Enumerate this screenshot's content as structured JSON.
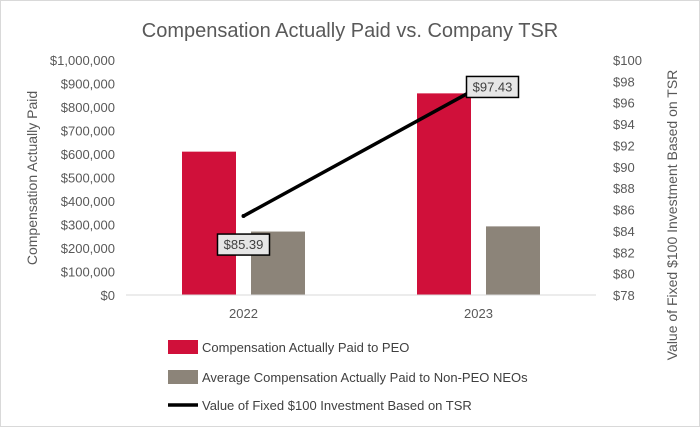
{
  "chart_data": {
    "type": "bar",
    "title": "Compensation Actually Paid vs. Company TSR",
    "xlabel": "",
    "ylabel": "Compensation Actually Paid",
    "y2label": "Value of Fixed $100 Investment Based on TSR",
    "categories": [
      "2022",
      "2023"
    ],
    "ylim": [
      0,
      1000000
    ],
    "y2lim": [
      78,
      100
    ],
    "yticks": [
      {
        "value": 0,
        "label": "$0"
      },
      {
        "value": 100000,
        "label": "$100,000"
      },
      {
        "value": 200000,
        "label": "$200,000"
      },
      {
        "value": 300000,
        "label": "$300,000"
      },
      {
        "value": 400000,
        "label": "$400,000"
      },
      {
        "value": 500000,
        "label": "$500,000"
      },
      {
        "value": 600000,
        "label": "$600,000"
      },
      {
        "value": 700000,
        "label": "$700,000"
      },
      {
        "value": 800000,
        "label": "$800,000"
      },
      {
        "value": 900000,
        "label": "$900,000"
      },
      {
        "value": 1000000,
        "label": "$1,000,000"
      }
    ],
    "y2ticks": [
      {
        "value": 78,
        "label": "$78"
      },
      {
        "value": 80,
        "label": "$80"
      },
      {
        "value": 82,
        "label": "$82"
      },
      {
        "value": 84,
        "label": "$84"
      },
      {
        "value": 86,
        "label": "$86"
      },
      {
        "value": 88,
        "label": "$88"
      },
      {
        "value": 90,
        "label": "$90"
      },
      {
        "value": 92,
        "label": "$92"
      },
      {
        "value": 94,
        "label": "$94"
      },
      {
        "value": 96,
        "label": "$96"
      },
      {
        "value": 98,
        "label": "$98"
      },
      {
        "value": 100,
        "label": "$100"
      }
    ],
    "series": [
      {
        "name": "Compensation Actually Paid to PEO",
        "kind": "bar",
        "axis": "left",
        "color": "#d0103a",
        "values": [
          610000,
          858000
        ]
      },
      {
        "name": "Average Compensation Actually Paid to Non-PEO NEOs",
        "kind": "bar",
        "axis": "left",
        "color": "#8c8479",
        "values": [
          270000,
          292000
        ]
      },
      {
        "name": "Value of Fixed $100 Investment Based on TSR",
        "kind": "line",
        "axis": "right",
        "color": "#000000",
        "values": [
          85.39,
          97.43
        ],
        "labels": [
          "$85.39",
          "$97.43"
        ]
      }
    ],
    "grid": false,
    "legend_position": "bottom-left"
  }
}
